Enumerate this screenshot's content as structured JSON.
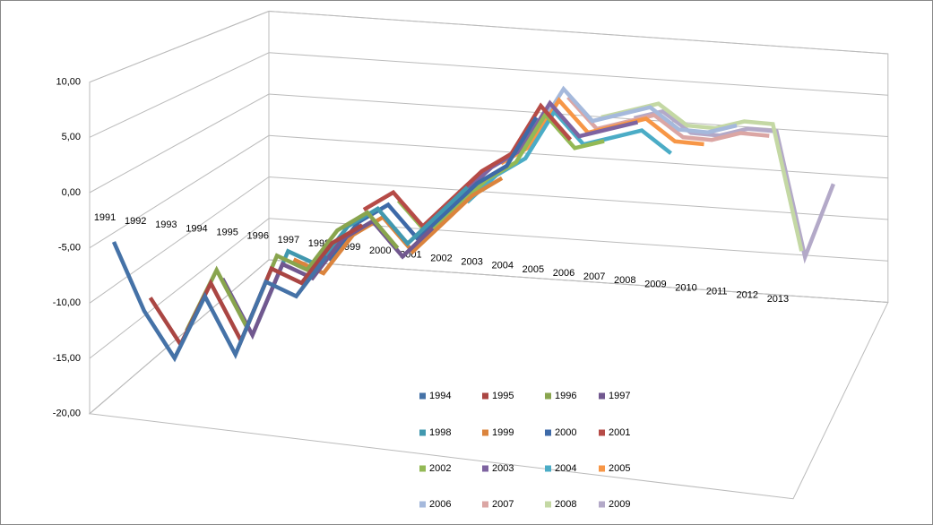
{
  "chart_data": {
    "type": "line3d",
    "categories": [
      "1991",
      "1992",
      "1993",
      "1994",
      "1995",
      "1996",
      "1997",
      "1998",
      "1999",
      "2000",
      "2001",
      "2002",
      "2003",
      "2004",
      "2005",
      "2006",
      "2007",
      "2008",
      "2009",
      "2010",
      "2011",
      "2012",
      "2013"
    ],
    "ylim": [
      -20,
      10
    ],
    "yticks": [
      {
        "value": -20,
        "label": "-20,00"
      },
      {
        "value": -15,
        "label": "-15,00"
      },
      {
        "value": -10,
        "label": "-10,00"
      },
      {
        "value": -5,
        "label": "-5,00"
      },
      {
        "value": 0,
        "label": "0,00"
      },
      {
        "value": 5,
        "label": "5,00"
      },
      {
        "value": 10,
        "label": "10,00"
      }
    ],
    "grid": true,
    "series": [
      {
        "name": "1994",
        "color": "#4572a7",
        "values": [
          -4.8,
          -10.8,
          -14.8,
          -8.8,
          -13.8,
          -6.8,
          -7.8,
          -3.8,
          null,
          null,
          null,
          null,
          null,
          null,
          null,
          null,
          null,
          null,
          null,
          null,
          null,
          null,
          null
        ]
      },
      {
        "name": "1995",
        "color": "#aa4643",
        "values": [
          null,
          -10,
          -14,
          -8,
          -13,
          -6,
          -7,
          -3,
          -1,
          null,
          null,
          null,
          null,
          null,
          null,
          null,
          null,
          null,
          null,
          null,
          null,
          null,
          null
        ]
      },
      {
        "name": "1996",
        "color": "#89a54e",
        "values": [
          null,
          null,
          -13.2,
          -7.2,
          -12.2,
          -5.2,
          -6.2,
          -2.2,
          -0.2,
          -3.2,
          null,
          null,
          null,
          null,
          null,
          null,
          null,
          null,
          null,
          null,
          null,
          null,
          null
        ]
      },
      {
        "name": "1997",
        "color": "#71588f",
        "values": [
          null,
          null,
          null,
          -8.4,
          -13.4,
          -6.4,
          -7.4,
          -3.4,
          -1.4,
          -4.4,
          -1.4,
          null,
          null,
          null,
          null,
          null,
          null,
          null,
          null,
          null,
          null,
          null,
          null
        ]
      },
      {
        "name": "1998",
        "color": "#4198af",
        "values": [
          null,
          null,
          null,
          null,
          -12.6,
          -5.6,
          -6.6,
          -2.6,
          -0.6,
          -3.6,
          -0.6,
          2.4,
          null,
          null,
          null,
          null,
          null,
          null,
          null,
          null,
          null,
          null,
          null
        ]
      },
      {
        "name": "1999",
        "color": "#db843d",
        "values": [
          null,
          null,
          null,
          null,
          null,
          -6.8,
          -7.8,
          -3.8,
          -1.8,
          -4.8,
          -1.8,
          1.2,
          3.2,
          null,
          null,
          null,
          null,
          null,
          null,
          null,
          null,
          null,
          null
        ]
      },
      {
        "name": "2000",
        "color": "#3e6aa8",
        "values": [
          null,
          null,
          null,
          null,
          null,
          null,
          -7,
          -3,
          -1,
          -4,
          -1,
          2,
          4,
          9,
          null,
          null,
          null,
          null,
          null,
          null,
          null,
          null,
          null
        ]
      },
      {
        "name": "2001",
        "color": "#b64b47",
        "values": [
          null,
          null,
          null,
          null,
          null,
          null,
          null,
          -2.2,
          -0.2,
          -3.2,
          -0.2,
          2.8,
          4.8,
          9.8,
          6.8,
          null,
          null,
          null,
          null,
          null,
          null,
          null,
          null
        ]
      },
      {
        "name": "2002",
        "color": "#93b955",
        "values": [
          null,
          null,
          null,
          null,
          null,
          null,
          null,
          null,
          -1.4,
          -4.4,
          -1.4,
          1.6,
          3.6,
          8.6,
          5.6,
          6.6,
          null,
          null,
          null,
          null,
          null,
          null,
          null
        ]
      },
      {
        "name": "2003",
        "color": "#7e63a0",
        "values": [
          null,
          null,
          null,
          null,
          null,
          null,
          null,
          null,
          null,
          -3.6,
          -0.6,
          2.4,
          4.4,
          9.4,
          6.4,
          7.4,
          8.4,
          null,
          null,
          null,
          null,
          null,
          null
        ]
      },
      {
        "name": "2004",
        "color": "#4bacc6",
        "values": [
          null,
          null,
          null,
          null,
          null,
          null,
          null,
          null,
          null,
          null,
          -1.8,
          1.2,
          3.2,
          8.2,
          5.2,
          6.2,
          7.2,
          5.2,
          null,
          null,
          null,
          null,
          null
        ]
      },
      {
        "name": "2005",
        "color": "#f79646",
        "values": [
          null,
          null,
          null,
          null,
          null,
          null,
          null,
          null,
          null,
          null,
          null,
          2,
          4,
          9,
          6,
          7,
          8,
          6,
          6,
          null,
          null,
          null,
          null
        ]
      },
      {
        "name": "2006",
        "color": "#a5b9dc",
        "values": [
          null,
          null,
          null,
          null,
          null,
          null,
          null,
          null,
          null,
          null,
          null,
          null,
          4.8,
          9.8,
          6.8,
          7.8,
          8.8,
          6.8,
          6.8,
          7.8,
          null,
          null,
          null
        ]
      },
      {
        "name": "2007",
        "color": "#dba6a4",
        "values": [
          null,
          null,
          null,
          null,
          null,
          null,
          null,
          null,
          null,
          null,
          null,
          null,
          null,
          8.6,
          5.6,
          6.6,
          7.6,
          5.6,
          5.6,
          6.6,
          6.6,
          null,
          null
        ]
      },
      {
        "name": "2008",
        "color": "#c4d8a4",
        "values": [
          null,
          null,
          null,
          null,
          null,
          null,
          null,
          null,
          null,
          null,
          null,
          null,
          null,
          null,
          6.4,
          7.4,
          8.4,
          6.4,
          6.4,
          7.4,
          7.4,
          -5.6,
          null
        ]
      },
      {
        "name": "2009",
        "color": "#b3a9c8",
        "values": [
          null,
          null,
          null,
          null,
          null,
          null,
          null,
          null,
          null,
          null,
          null,
          null,
          null,
          null,
          null,
          6.2,
          7.2,
          5.2,
          5.2,
          6.2,
          6.2,
          -6.8,
          1.2
        ]
      }
    ]
  }
}
